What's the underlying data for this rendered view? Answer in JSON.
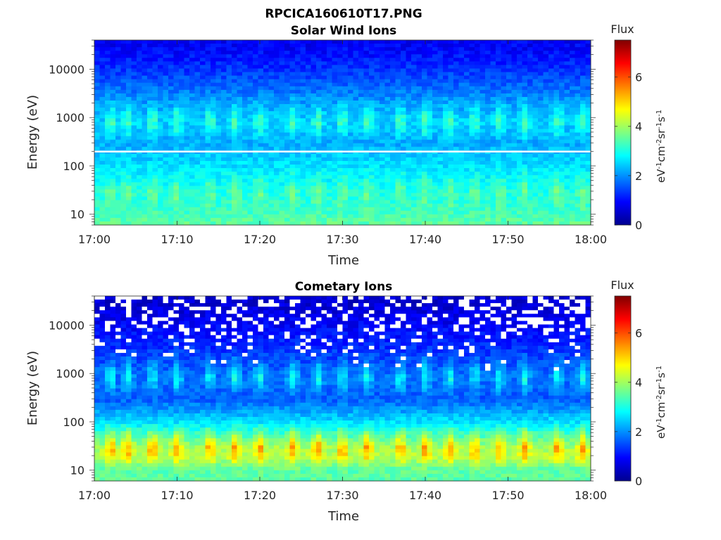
{
  "figure": {
    "title": "RPCICA160610T17.PNG"
  },
  "colorscale": {
    "label": "Flux",
    "min": 0,
    "max": 7.5,
    "ticks": [
      "0",
      "2",
      "4",
      "6"
    ],
    "tick_values": [
      0,
      2,
      4,
      6
    ],
    "colormap": "jet",
    "colors": [
      "#00008f",
      "#0000ff",
      "#00ffff",
      "#ffff00",
      "#ff0000",
      "#800000"
    ]
  },
  "panels": [
    {
      "title": "Solar Wind Ions",
      "ylabel": "Energy (eV)",
      "xlabel": "Time",
      "xticks": [
        "17:00",
        "17:10",
        "17:20",
        "17:30",
        "17:40",
        "17:50",
        "18:00"
      ],
      "yticks": [
        "10",
        "100",
        "1000",
        "10000"
      ],
      "cbar_tick_labels": [
        "0",
        "2",
        "4",
        "6"
      ]
    },
    {
      "title": "Cometary Ions",
      "ylabel": "Energy (eV)",
      "xlabel": "Time",
      "xticks": [
        "17:00",
        "17:10",
        "17:20",
        "17:30",
        "17:40",
        "17:50",
        "18:00"
      ],
      "yticks": [
        "10",
        "100",
        "1000",
        "10000"
      ],
      "cbar_tick_labels": [
        "0",
        "2",
        "4",
        "6"
      ]
    }
  ],
  "chart_data": [
    {
      "type": "heatmap",
      "title": "Solar Wind Ions",
      "xlabel": "Time",
      "ylabel": "Energy (eV)",
      "x_range": [
        "17:00",
        "18:00"
      ],
      "y_range": [
        6,
        40000
      ],
      "y_scale": "log",
      "colorbar": {
        "label": "Flux",
        "units": "eV-1 cm-2 sr-1 s-1",
        "range": [
          0,
          7.5
        ]
      },
      "pattern_rows": [
        {
          "energy_eV": 30000,
          "flux": 0.9
        },
        {
          "energy_eV": 10000,
          "flux": 1.3
        },
        {
          "energy_eV": 3000,
          "flux": 1.9
        },
        {
          "energy_eV": 800,
          "flux": 2.5,
          "pulsed_peak": 3.6
        },
        {
          "energy_eV": 300,
          "flux": 2.2
        },
        {
          "energy_eV": 100,
          "flux": 2.6
        },
        {
          "energy_eV": 30,
          "flux": 3.0,
          "pulsed_peak": 3.7
        },
        {
          "energy_eV": 10,
          "flux": 3.3
        },
        {
          "energy_eV": 7,
          "flux": 3.5
        }
      ],
      "pulse_times": [
        "17:02",
        "17:04",
        "17:07",
        "17:10",
        "17:14",
        "17:17",
        "17:20",
        "17:24",
        "17:27",
        "17:30",
        "17:33",
        "17:37",
        "17:40",
        "17:43",
        "17:46",
        "17:49",
        "17:52",
        "17:56",
        "17:59"
      ]
    },
    {
      "type": "heatmap",
      "title": "Cometary Ions",
      "xlabel": "Time",
      "ylabel": "Energy (eV)",
      "x_range": [
        "17:00",
        "18:00"
      ],
      "y_range": [
        6,
        40000
      ],
      "y_scale": "log",
      "colorbar": {
        "label": "Flux",
        "units": "eV-1 cm-2 sr-1 s-1",
        "range": [
          0,
          7.5
        ]
      },
      "pattern_rows": [
        {
          "energy_eV": 30000,
          "flux": 0.6
        },
        {
          "energy_eV": 10000,
          "flux": 0.9
        },
        {
          "energy_eV": 3000,
          "flux": 1.3
        },
        {
          "energy_eV": 800,
          "flux": 1.8,
          "pulsed_peak": 3.1
        },
        {
          "energy_eV": 300,
          "flux": 1.6
        },
        {
          "energy_eV": 100,
          "flux": 2.6
        },
        {
          "energy_eV": 30,
          "flux": 4.0,
          "pulsed_peak": 5.6
        },
        {
          "energy_eV": 20,
          "flux": 4.2,
          "pulsed_peak": 5.2
        },
        {
          "energy_eV": 10,
          "flux": 3.5
        },
        {
          "energy_eV": 7,
          "flux": 3.5
        }
      ],
      "pulse_times": [
        "17:02",
        "17:04",
        "17:07",
        "17:10",
        "17:14",
        "17:17",
        "17:20",
        "17:24",
        "17:27",
        "17:30",
        "17:33",
        "17:37",
        "17:40",
        "17:43",
        "17:46",
        "17:49",
        "17:52",
        "17:56",
        "17:59"
      ]
    }
  ]
}
